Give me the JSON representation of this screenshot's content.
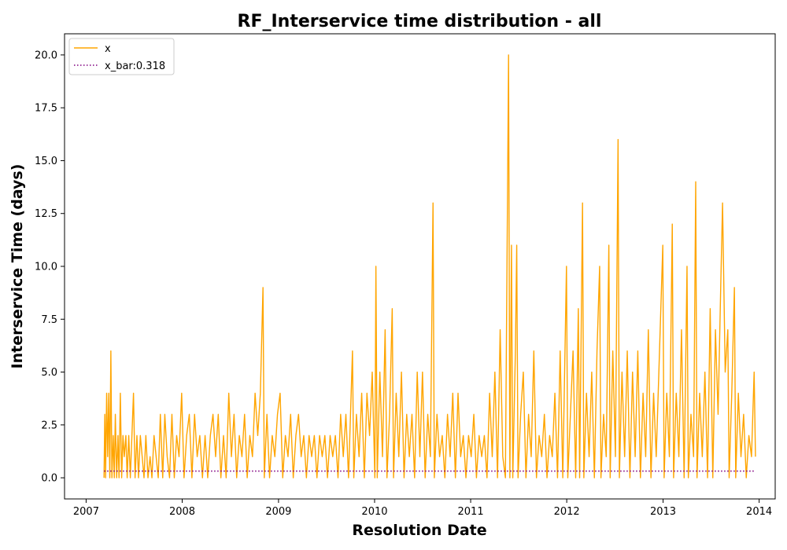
{
  "chart_data": {
    "type": "line",
    "title": "RF_Interservice time distribution - all",
    "xlabel": "Resolution Date",
    "ylabel": "Interservice Time (days)",
    "xlim": [
      "2006-10-11",
      "2014-03-03"
    ],
    "ylim": [
      -1.0,
      21.0
    ],
    "x_ticks": [
      "2007",
      "2008",
      "2009",
      "2010",
      "2011",
      "2012",
      "2013",
      "2014"
    ],
    "y_ticks": [
      "0.0",
      "2.5",
      "5.0",
      "7.5",
      "10.0",
      "12.5",
      "15.0",
      "17.5",
      "20.0"
    ],
    "grid": false,
    "legend_position": "top-left",
    "legend": [
      "x",
      "x_bar:0.318"
    ],
    "series": [
      {
        "name": "x",
        "color": "#ffa500",
        "style": "solid",
        "points": [
          [
            "2007-03-10",
            0
          ],
          [
            "2007-03-13",
            3
          ],
          [
            "2007-03-16",
            0
          ],
          [
            "2007-03-20",
            4
          ],
          [
            "2007-03-24",
            1
          ],
          [
            "2007-03-28",
            4
          ],
          [
            "2007-04-01",
            0
          ],
          [
            "2007-04-05",
            6
          ],
          [
            "2007-04-09",
            0
          ],
          [
            "2007-04-14",
            2
          ],
          [
            "2007-04-18",
            0
          ],
          [
            "2007-04-22",
            3
          ],
          [
            "2007-04-27",
            0
          ],
          [
            "2007-05-02",
            2
          ],
          [
            "2007-05-06",
            0
          ],
          [
            "2007-05-11",
            4
          ],
          [
            "2007-05-16",
            0
          ],
          [
            "2007-05-21",
            2
          ],
          [
            "2007-05-26",
            1
          ],
          [
            "2007-06-01",
            2
          ],
          [
            "2007-06-06",
            0
          ],
          [
            "2007-06-12",
            2
          ],
          [
            "2007-06-18",
            0
          ],
          [
            "2007-06-24",
            2
          ],
          [
            "2007-06-30",
            4
          ],
          [
            "2007-07-06",
            0
          ],
          [
            "2007-07-13",
            2
          ],
          [
            "2007-07-19",
            0
          ],
          [
            "2007-07-26",
            2
          ],
          [
            "2007-08-02",
            1
          ],
          [
            "2007-08-09",
            0
          ],
          [
            "2007-08-16",
            2
          ],
          [
            "2007-08-24",
            0
          ],
          [
            "2007-09-01",
            1
          ],
          [
            "2007-09-08",
            0
          ],
          [
            "2007-09-16",
            2
          ],
          [
            "2007-09-24",
            1
          ],
          [
            "2007-10-02",
            0
          ],
          [
            "2007-10-10",
            3
          ],
          [
            "2007-10-19",
            0
          ],
          [
            "2007-10-27",
            3
          ],
          [
            "2007-11-05",
            1
          ],
          [
            "2007-11-14",
            0
          ],
          [
            "2007-11-23",
            3
          ],
          [
            "2007-12-02",
            0
          ],
          [
            "2007-12-11",
            2
          ],
          [
            "2007-12-20",
            1
          ],
          [
            "2007-12-30",
            4
          ],
          [
            "2008-01-08",
            0
          ],
          [
            "2008-01-18",
            2
          ],
          [
            "2008-01-28",
            3
          ],
          [
            "2008-02-07",
            0
          ],
          [
            "2008-02-17",
            3
          ],
          [
            "2008-02-27",
            1
          ],
          [
            "2008-03-08",
            2
          ],
          [
            "2008-03-18",
            0
          ],
          [
            "2008-03-28",
            2
          ],
          [
            "2008-04-07",
            0
          ],
          [
            "2008-04-17",
            2
          ],
          [
            "2008-04-27",
            3
          ],
          [
            "2008-05-07",
            1
          ],
          [
            "2008-05-17",
            3
          ],
          [
            "2008-05-27",
            0
          ],
          [
            "2008-06-06",
            2
          ],
          [
            "2008-06-16",
            0
          ],
          [
            "2008-06-26",
            4
          ],
          [
            "2008-07-06",
            1
          ],
          [
            "2008-07-16",
            3
          ],
          [
            "2008-07-26",
            0
          ],
          [
            "2008-08-05",
            2
          ],
          [
            "2008-08-15",
            1
          ],
          [
            "2008-08-25",
            3
          ],
          [
            "2008-09-04",
            0
          ],
          [
            "2008-09-14",
            2
          ],
          [
            "2008-09-24",
            1
          ],
          [
            "2008-10-04",
            4
          ],
          [
            "2008-10-14",
            2
          ],
          [
            "2008-10-24",
            4
          ],
          [
            "2008-11-03",
            9
          ],
          [
            "2008-11-08",
            0
          ],
          [
            "2008-11-18",
            3
          ],
          [
            "2008-11-28",
            0
          ],
          [
            "2008-12-08",
            2
          ],
          [
            "2008-12-18",
            1
          ],
          [
            "2008-12-28",
            3
          ],
          [
            "2009-01-07",
            4
          ],
          [
            "2009-01-17",
            0
          ],
          [
            "2009-01-27",
            2
          ],
          [
            "2009-02-06",
            1
          ],
          [
            "2009-02-16",
            3
          ],
          [
            "2009-02-26",
            0
          ],
          [
            "2009-03-08",
            2
          ],
          [
            "2009-03-18",
            3
          ],
          [
            "2009-03-28",
            1
          ],
          [
            "2009-04-07",
            2
          ],
          [
            "2009-04-17",
            0
          ],
          [
            "2009-04-27",
            2
          ],
          [
            "2009-05-07",
            1
          ],
          [
            "2009-05-17",
            2
          ],
          [
            "2009-05-27",
            0
          ],
          [
            "2009-06-06",
            2
          ],
          [
            "2009-06-16",
            1
          ],
          [
            "2009-06-26",
            2
          ],
          [
            "2009-07-06",
            0
          ],
          [
            "2009-07-16",
            2
          ],
          [
            "2009-07-26",
            1
          ],
          [
            "2009-08-05",
            2
          ],
          [
            "2009-08-15",
            0
          ],
          [
            "2009-08-25",
            3
          ],
          [
            "2009-09-04",
            1
          ],
          [
            "2009-09-14",
            3
          ],
          [
            "2009-09-24",
            0
          ],
          [
            "2009-10-04",
            4
          ],
          [
            "2009-10-09",
            6
          ],
          [
            "2009-10-14",
            0
          ],
          [
            "2009-10-24",
            3
          ],
          [
            "2009-11-03",
            1
          ],
          [
            "2009-11-13",
            4
          ],
          [
            "2009-11-23",
            0
          ],
          [
            "2009-12-03",
            4
          ],
          [
            "2009-12-13",
            2
          ],
          [
            "2009-12-23",
            5
          ],
          [
            "2010-01-02",
            0
          ],
          [
            "2010-01-06",
            10
          ],
          [
            "2010-01-11",
            0
          ],
          [
            "2010-01-21",
            5
          ],
          [
            "2010-01-31",
            1
          ],
          [
            "2010-02-10",
            7
          ],
          [
            "2010-02-17",
            0
          ],
          [
            "2010-02-27",
            3
          ],
          [
            "2010-03-09",
            8
          ],
          [
            "2010-03-14",
            0
          ],
          [
            "2010-03-24",
            4
          ],
          [
            "2010-04-03",
            1
          ],
          [
            "2010-04-13",
            5
          ],
          [
            "2010-04-23",
            0
          ],
          [
            "2010-05-03",
            3
          ],
          [
            "2010-05-13",
            1
          ],
          [
            "2010-05-23",
            3
          ],
          [
            "2010-06-02",
            0
          ],
          [
            "2010-06-12",
            5
          ],
          [
            "2010-06-22",
            1
          ],
          [
            "2010-07-02",
            5
          ],
          [
            "2010-07-12",
            0
          ],
          [
            "2010-07-22",
            3
          ],
          [
            "2010-08-01",
            1
          ],
          [
            "2010-08-11",
            13
          ],
          [
            "2010-08-16",
            0
          ],
          [
            "2010-08-26",
            3
          ],
          [
            "2010-09-05",
            1
          ],
          [
            "2010-09-15",
            2
          ],
          [
            "2010-09-25",
            0
          ],
          [
            "2010-10-05",
            3
          ],
          [
            "2010-10-15",
            1
          ],
          [
            "2010-10-25",
            4
          ],
          [
            "2010-11-04",
            0
          ],
          [
            "2010-11-14",
            4
          ],
          [
            "2010-11-24",
            1
          ],
          [
            "2010-12-04",
            2
          ],
          [
            "2010-12-14",
            0
          ],
          [
            "2010-12-24",
            2
          ],
          [
            "2011-01-03",
            1
          ],
          [
            "2011-01-13",
            3
          ],
          [
            "2011-01-23",
            0
          ],
          [
            "2011-02-02",
            2
          ],
          [
            "2011-02-12",
            1
          ],
          [
            "2011-02-22",
            2
          ],
          [
            "2011-03-04",
            0
          ],
          [
            "2011-03-14",
            4
          ],
          [
            "2011-03-24",
            1
          ],
          [
            "2011-04-03",
            5
          ],
          [
            "2011-04-13",
            0
          ],
          [
            "2011-04-23",
            7
          ],
          [
            "2011-05-03",
            1
          ],
          [
            "2011-05-13",
            0
          ],
          [
            "2011-05-25",
            20
          ],
          [
            "2011-05-30",
            0
          ],
          [
            "2011-06-05",
            11
          ],
          [
            "2011-06-10",
            0
          ],
          [
            "2011-06-20",
            6
          ],
          [
            "2011-06-25",
            11
          ],
          [
            "2011-06-30",
            0
          ],
          [
            "2011-07-10",
            3
          ],
          [
            "2011-07-20",
            5
          ],
          [
            "2011-07-30",
            0
          ],
          [
            "2011-08-09",
            3
          ],
          [
            "2011-08-19",
            1
          ],
          [
            "2011-08-29",
            6
          ],
          [
            "2011-09-08",
            0
          ],
          [
            "2011-09-18",
            2
          ],
          [
            "2011-09-28",
            1
          ],
          [
            "2011-10-08",
            3
          ],
          [
            "2011-10-18",
            0
          ],
          [
            "2011-10-28",
            2
          ],
          [
            "2011-11-07",
            1
          ],
          [
            "2011-11-17",
            4
          ],
          [
            "2011-11-27",
            0
          ],
          [
            "2011-12-07",
            6
          ],
          [
            "2011-12-17",
            0
          ],
          [
            "2011-12-31",
            10
          ],
          [
            "2012-01-05",
            0
          ],
          [
            "2012-01-15",
            3
          ],
          [
            "2012-01-25",
            6
          ],
          [
            "2012-02-04",
            0
          ],
          [
            "2012-02-14",
            8
          ],
          [
            "2012-02-19",
            0
          ],
          [
            "2012-03-01",
            13
          ],
          [
            "2012-03-06",
            0
          ],
          [
            "2012-03-16",
            4
          ],
          [
            "2012-03-26",
            1
          ],
          [
            "2012-04-05",
            5
          ],
          [
            "2012-04-15",
            0
          ],
          [
            "2012-04-25",
            6
          ],
          [
            "2012-05-05",
            10
          ],
          [
            "2012-05-10",
            0
          ],
          [
            "2012-05-20",
            3
          ],
          [
            "2012-05-30",
            1
          ],
          [
            "2012-06-09",
            11
          ],
          [
            "2012-06-14",
            0
          ],
          [
            "2012-06-24",
            6
          ],
          [
            "2012-07-04",
            1
          ],
          [
            "2012-07-14",
            16
          ],
          [
            "2012-07-19",
            0
          ],
          [
            "2012-07-29",
            5
          ],
          [
            "2012-08-08",
            1
          ],
          [
            "2012-08-18",
            6
          ],
          [
            "2012-08-28",
            0
          ],
          [
            "2012-09-07",
            5
          ],
          [
            "2012-09-17",
            1
          ],
          [
            "2012-09-27",
            6
          ],
          [
            "2012-10-07",
            0
          ],
          [
            "2012-10-17",
            4
          ],
          [
            "2012-10-27",
            1
          ],
          [
            "2012-11-06",
            7
          ],
          [
            "2012-11-16",
            0
          ],
          [
            "2012-11-26",
            4
          ],
          [
            "2012-12-06",
            1
          ],
          [
            "2012-12-16",
            5
          ],
          [
            "2012-12-31",
            11
          ],
          [
            "2013-01-05",
            0
          ],
          [
            "2013-01-15",
            4
          ],
          [
            "2013-01-25",
            1
          ],
          [
            "2013-02-05",
            12
          ],
          [
            "2013-02-10",
            0
          ],
          [
            "2013-02-20",
            4
          ],
          [
            "2013-03-02",
            1
          ],
          [
            "2013-03-12",
            7
          ],
          [
            "2013-03-22",
            0
          ],
          [
            "2013-04-02",
            10
          ],
          [
            "2013-04-07",
            0
          ],
          [
            "2013-04-17",
            3
          ],
          [
            "2013-04-27",
            1
          ],
          [
            "2013-05-05",
            14
          ],
          [
            "2013-05-10",
            0
          ],
          [
            "2013-05-20",
            4
          ],
          [
            "2013-05-30",
            1
          ],
          [
            "2013-06-09",
            5
          ],
          [
            "2013-06-19",
            0
          ],
          [
            "2013-06-29",
            8
          ],
          [
            "2013-07-09",
            0
          ],
          [
            "2013-07-19",
            7
          ],
          [
            "2013-07-29",
            3
          ],
          [
            "2013-08-08",
            9
          ],
          [
            "2013-08-15",
            13
          ],
          [
            "2013-08-25",
            5
          ],
          [
            "2013-09-04",
            7
          ],
          [
            "2013-09-09",
            0
          ],
          [
            "2013-09-19",
            4
          ],
          [
            "2013-09-29",
            9
          ],
          [
            "2013-10-04",
            0
          ],
          [
            "2013-10-14",
            4
          ],
          [
            "2013-10-24",
            1
          ],
          [
            "2013-11-03",
            3
          ],
          [
            "2013-11-13",
            0
          ],
          [
            "2013-11-23",
            2
          ],
          [
            "2013-12-03",
            1
          ],
          [
            "2013-12-13",
            5
          ],
          [
            "2013-12-18",
            1
          ]
        ]
      },
      {
        "name": "x_bar:0.318",
        "color": "#800080",
        "style": "dotted",
        "points": [
          [
            "2007-03-10",
            0.318
          ],
          [
            "2013-12-18",
            0.318
          ]
        ]
      }
    ]
  }
}
